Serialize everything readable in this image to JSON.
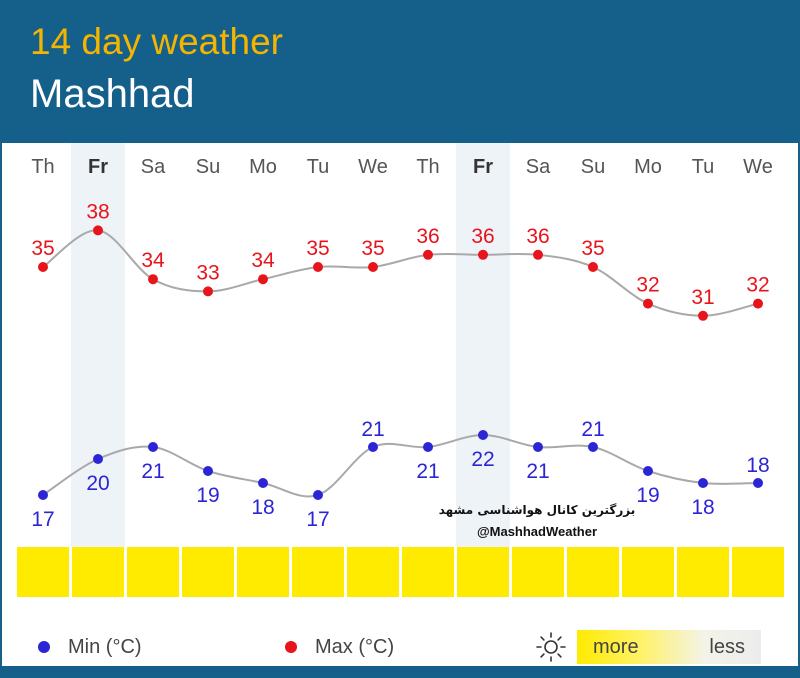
{
  "header": {
    "title": "14 day weather",
    "city": "Mashhad"
  },
  "chart_data": {
    "type": "line",
    "x": [
      "Th",
      "Fr",
      "Sa",
      "Su",
      "Mo",
      "Tu",
      "We",
      "Th",
      "Fr",
      "Sa",
      "Su",
      "Mo",
      "Tu",
      "We"
    ],
    "highlight_days": [
      1,
      8
    ],
    "series": [
      {
        "name": "Max (°C)",
        "color": "#e8141c",
        "values": [
          35,
          38,
          34,
          33,
          34,
          35,
          35,
          36,
          36,
          36,
          35,
          32,
          31,
          32
        ]
      },
      {
        "name": "Min (°C)",
        "color": "#2b25d6",
        "values": [
          17,
          20,
          21,
          19,
          18,
          17,
          21,
          21,
          22,
          21,
          21,
          19,
          18,
          18
        ]
      }
    ],
    "sunshine": [
      "more",
      "more",
      "more",
      "more",
      "more",
      "more",
      "more",
      "more",
      "more",
      "more",
      "more",
      "more",
      "more",
      "more"
    ]
  },
  "watermark": {
    "line1": "بزرگترین کانال هواشناسی مشهد",
    "line2": "@MashhadWeather"
  },
  "legend": {
    "min_label": "Min (°C)",
    "max_label": "Max (°C)",
    "more": "more",
    "less": "less"
  },
  "colors": {
    "header_bg": "#15608a",
    "title": "#f4b400",
    "max": "#e8141c",
    "min": "#2b25d6",
    "sun_cell": "#ffeb00"
  }
}
